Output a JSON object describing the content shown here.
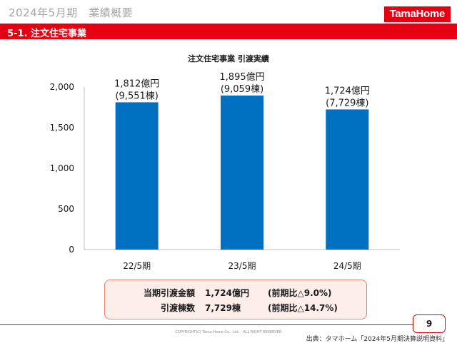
{
  "header": {
    "title": "2024年5月期　業績概要",
    "logo_text": "TamaHome"
  },
  "section": {
    "title": "5-1. 注文住宅事業"
  },
  "colors": {
    "brand_red": "#e60012",
    "bar_blue": "#0070c0",
    "summary_bg": "#fdeeea",
    "summary_border": "#e8826f"
  },
  "chart_data": {
    "type": "bar",
    "title": "注文住宅事業 引渡実績",
    "categories": [
      "22/5期",
      "23/5期",
      "24/5期"
    ],
    "values": [
      1812,
      1895,
      1724
    ],
    "data_labels": [
      [
        "1,812億円",
        "(9,551棟)"
      ],
      [
        "1,895億円",
        "(9,059棟)"
      ],
      [
        "1,724億円",
        "(7,729棟)"
      ]
    ],
    "ylim": [
      0,
      2000
    ],
    "yticks": [
      0,
      500,
      1000,
      1500,
      2000
    ],
    "ytick_labels": [
      "0",
      "500",
      "1,000",
      "1,500",
      "2,000"
    ],
    "xlabel": "",
    "ylabel": "",
    "grid": false,
    "legend": "none"
  },
  "summary": {
    "rows": [
      {
        "label": "当期引渡金額",
        "value": "1,724億円",
        "compare": "(前期比△9.0%)"
      },
      {
        "label": "引渡棟数",
        "value": "7,729棟",
        "compare": "(前期比△14.7%)"
      }
    ]
  },
  "footer": {
    "page_number": "9",
    "copyright": "COPYRIGHT(C) Tama Home Co., Ltd.　ALL RIGHT RESERVED",
    "source": "出典：タマホーム「2024年5月期決算説明資料」"
  }
}
